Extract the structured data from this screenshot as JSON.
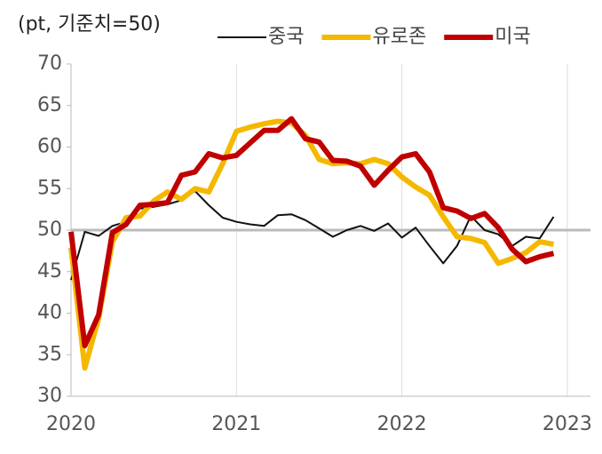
{
  "chart_data": {
    "type": "line",
    "title": "(pt, 기준치=50)",
    "x": [
      2020,
      2020.083,
      2020.167,
      2020.25,
      2020.333,
      2020.417,
      2020.5,
      2020.583,
      2020.667,
      2020.75,
      2020.833,
      2020.917,
      2021,
      2021.083,
      2021.167,
      2021.25,
      2021.333,
      2021.417,
      2021.5,
      2021.583,
      2021.667,
      2021.75,
      2021.833,
      2021.917,
      2022,
      2022.083,
      2022.167,
      2022.25,
      2022.333,
      2022.417,
      2022.5,
      2022.583,
      2022.667,
      2022.75,
      2022.833,
      2022.917
    ],
    "series": [
      {
        "name": "중국",
        "color": "#111111",
        "width": 2,
        "values": [
          44,
          49.8,
          49.3,
          50.5,
          51,
          52.6,
          52.8,
          53.1,
          53.6,
          54.7,
          53,
          51.5,
          51,
          50.7,
          50.5,
          51.8,
          51.9,
          51.2,
          50.2,
          49.2,
          50,
          50.5,
          49.9,
          50.8,
          49.1,
          50.3,
          48.1,
          46,
          48.1,
          51.7,
          50,
          49.5,
          48.1,
          49.2,
          49,
          51.6
        ]
      },
      {
        "name": "유로존",
        "color": "#f5b800",
        "width": 6,
        "values": [
          47.9,
          33.4,
          39.4,
          48.6,
          51.5,
          51.7,
          53.5,
          54.6,
          53.7,
          55,
          54.6,
          58,
          61.9,
          62.4,
          62.8,
          63.1,
          62.9,
          61.4,
          58.5,
          58,
          58.1,
          58,
          58.5,
          58,
          56.4,
          55.2,
          54.2,
          51.6,
          49.2,
          49,
          48.5,
          46,
          46.6,
          47.3,
          48.6,
          48.3
        ]
      },
      {
        "name": "미국",
        "color": "#c00000",
        "width": 6,
        "values": [
          49.8,
          36.1,
          39.8,
          49.7,
          50.7,
          53,
          53.1,
          53.3,
          56.6,
          57,
          59.2,
          58.7,
          59,
          60.5,
          62,
          62,
          63.4,
          61,
          60.6,
          58.4,
          58.3,
          57.7,
          55.4,
          57.2,
          58.8,
          59.2,
          57,
          52.7,
          52.3,
          51.4,
          52,
          50.3,
          47.7,
          46.2,
          46.8,
          47.2
        ]
      }
    ],
    "reference_line": 50,
    "xlim": [
      2020,
      2023.14
    ],
    "xticks": [
      2020,
      2021,
      2022,
      2023
    ],
    "ylim": [
      30,
      70
    ],
    "yticks": [
      30,
      35,
      40,
      45,
      50,
      55,
      60,
      65,
      70
    ],
    "grid": "x",
    "legend": "top"
  }
}
